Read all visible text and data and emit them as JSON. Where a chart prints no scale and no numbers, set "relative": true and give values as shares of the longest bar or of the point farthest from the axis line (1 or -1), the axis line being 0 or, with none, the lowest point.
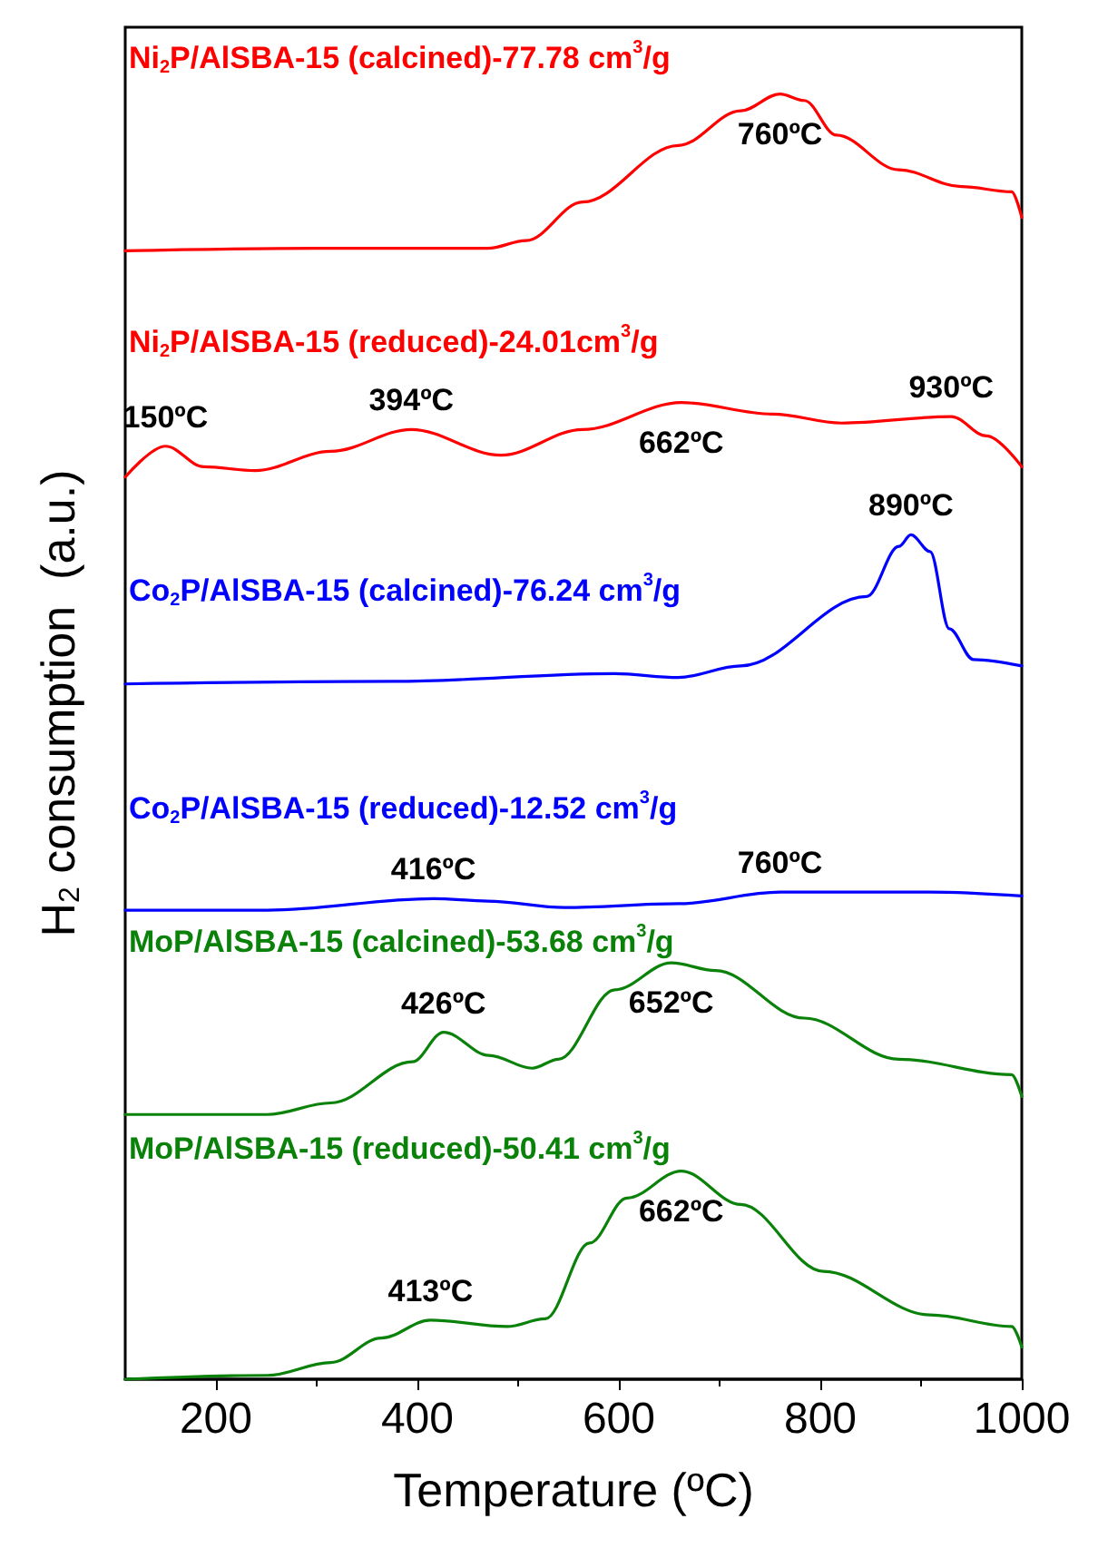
{
  "chart_data": {
    "type": "line",
    "relative": true,
    "xlabel": "Temperature (ºC)",
    "ylabel": "H$_{2}$ consumption  (a.u.)",
    "xlim": [
      110,
      1000
    ],
    "xticks": [
      200,
      400,
      600,
      800,
      1000
    ],
    "tick_labels": "x",
    "grid": false,
    "legend": false,
    "marker": "none",
    "line_style": "solid",
    "series": [
      {
        "name": "Ni$_{2}$P/AlSBA-15 (calcined)-77.78 cm$^{3}$/g",
        "color": "#ff0000",
        "x": [
          110,
          300,
          470,
          508,
          564,
          659,
          721,
          760,
          784,
          816,
          878,
          940,
          990,
          1000
        ],
        "values": [
          0.878,
          0.88,
          0.88,
          0.886,
          0.916,
          0.96,
          0.987,
          1.0,
          0.995,
          0.968,
          0.941,
          0.928,
          0.924,
          0.904
        ]
      },
      {
        "name": "Ni$_{2}$P/AlSBA-15 (reduced)-24.01cm$^{3}$/g",
        "color": "#ff0000",
        "x": [
          110,
          150,
          188,
          239,
          314,
          394,
          483,
          564,
          662,
          753,
          821,
          930,
          965,
          1000
        ],
        "values": [
          0.702,
          0.726,
          0.71,
          0.707,
          0.722,
          0.739,
          0.719,
          0.739,
          0.76,
          0.751,
          0.744,
          0.749,
          0.734,
          0.71
        ]
      },
      {
        "name": "Co$_{2}$P/AlSBA-15 (calcined)-76.24 cm$^{3}$/g",
        "color": "#0000ff",
        "x": [
          110,
          377,
          596,
          659,
          721,
          846,
          878,
          890,
          909,
          928,
          952,
          1000
        ],
        "values": [
          0.541,
          0.543,
          0.549,
          0.546,
          0.555,
          0.609,
          0.648,
          0.657,
          0.644,
          0.584,
          0.56,
          0.555
        ]
      },
      {
        "name": "Co$_{2}$P/AlSBA-15 (reduced)-12.52 cm$^{3}$/g",
        "color": "#0000ff",
        "x": [
          110,
          251,
          416,
          470,
          546,
          659,
          760,
          909,
          1000
        ],
        "values": [
          0.365,
          0.365,
          0.374,
          0.372,
          0.367,
          0.37,
          0.379,
          0.379,
          0.376
        ]
      },
      {
        "name": "MoP/AlSBA-15 (calcined)-53.68 cm$^{3}$/g",
        "color": "#0a820a",
        "x": [
          110,
          251,
          314,
          395,
          426,
          471,
          514,
          540,
          596,
          652,
          696,
          784,
          878,
          990,
          1000
        ],
        "values": [
          0.206,
          0.206,
          0.215,
          0.247,
          0.27,
          0.252,
          0.242,
          0.249,
          0.303,
          0.324,
          0.318,
          0.281,
          0.249,
          0.237,
          0.22
        ]
      },
      {
        "name": "MoP/AlSBA-15 (reduced)-50.41 cm$^{3}$/g",
        "color": "#0a820a",
        "x": [
          110,
          251,
          314,
          364,
          413,
          489,
          527,
          571,
          608,
          662,
          721,
          803,
          909,
          990,
          1000
        ],
        "values": [
          0.0,
          0.003,
          0.013,
          0.032,
          0.046,
          0.041,
          0.047,
          0.106,
          0.141,
          0.162,
          0.136,
          0.084,
          0.05,
          0.041,
          0.025
        ]
      }
    ],
    "annotations": [
      {
        "text": "760ºC",
        "x": 760,
        "y": 1.0
      },
      {
        "text": "150ºC",
        "x": 150,
        "y": 0.726
      },
      {
        "text": "394ºC",
        "x": 394,
        "y": 0.739
      },
      {
        "text": "662ºC",
        "x": 662,
        "y": 0.76
      },
      {
        "text": "930ºC",
        "x": 930,
        "y": 0.749
      },
      {
        "text": "890ºC",
        "x": 890,
        "y": 0.657
      },
      {
        "text": "416ºC",
        "x": 416,
        "y": 0.374
      },
      {
        "text": "760ºC",
        "x": 760,
        "y": 0.379
      },
      {
        "text": "426ºC",
        "x": 426,
        "y": 0.27
      },
      {
        "text": "652ºC",
        "x": 652,
        "y": 0.324
      },
      {
        "text": "662ºC",
        "x": 662,
        "y": 0.162
      },
      {
        "text": "413ºC",
        "x": 413,
        "y": 0.046
      }
    ]
  }
}
